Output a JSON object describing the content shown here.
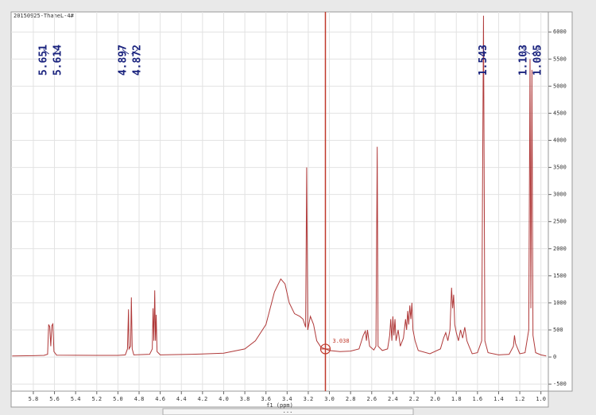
{
  "chart_data": {
    "type": "line",
    "title": "20150925-ThaneL-4#",
    "xlabel": "f1 (ppm)",
    "color": "#b03a3a",
    "grid": true,
    "xlim": [
      6.01,
      0.93
    ],
    "ylim": [
      -630,
      6370
    ],
    "xticks": [
      5.8,
      5.6,
      5.4,
      5.2,
      {
        "value": 5,
        "label": "5.0"
      },
      4.8,
      4.6,
      4.4,
      4.2,
      {
        "value": 4,
        "label": "4.0"
      },
      3.8,
      3.6,
      3.4,
      3.2,
      {
        "value": 3,
        "label": "3.0"
      },
      2.8,
      2.6,
      2.4,
      2.2,
      {
        "value": 2,
        "label": "2.0"
      },
      1.8,
      1.6,
      1.4,
      1.2,
      {
        "value": 1,
        "label": "1.0"
      }
    ],
    "yticks": [
      -500,
      0,
      500,
      1000,
      1500,
      2000,
      2500,
      3000,
      3500,
      4000,
      4500,
      5000,
      5500,
      6000
    ],
    "peak_labels": [
      5.651,
      5.614,
      4.897,
      4.872,
      1.543,
      1.103,
      1.085
    ],
    "cursor": 3.038,
    "x": [
      6.0,
      5.8,
      5.7,
      5.665,
      5.655,
      5.645,
      5.635,
      5.625,
      5.615,
      5.605,
      5.58,
      5.2,
      5.0,
      4.93,
      4.91,
      4.9,
      4.895,
      4.88,
      4.873,
      4.865,
      4.85,
      4.7,
      4.675,
      4.668,
      4.66,
      4.652,
      4.645,
      4.638,
      4.63,
      4.6,
      4.3,
      4.0,
      3.8,
      3.7,
      3.6,
      3.52,
      3.46,
      3.42,
      3.38,
      3.33,
      3.28,
      3.25,
      3.225,
      3.215,
      3.205,
      3.18,
      3.15,
      3.12,
      3.08,
      3.0,
      2.9,
      2.8,
      2.72,
      2.68,
      2.66,
      2.65,
      2.64,
      2.62,
      2.58,
      2.56,
      2.548,
      2.54,
      2.5,
      2.45,
      2.43,
      2.42,
      2.41,
      2.4,
      2.39,
      2.38,
      2.37,
      2.35,
      2.33,
      2.3,
      2.28,
      2.27,
      2.26,
      2.25,
      2.24,
      2.23,
      2.22,
      2.21,
      2.19,
      2.16,
      2.05,
      1.95,
      1.92,
      1.9,
      1.88,
      1.86,
      1.845,
      1.835,
      1.825,
      1.815,
      1.8,
      1.78,
      1.76,
      1.74,
      1.72,
      1.7,
      1.68,
      1.65,
      1.6,
      1.56,
      1.543,
      1.53,
      1.5,
      1.4,
      1.3,
      1.26,
      1.25,
      1.24,
      1.2,
      1.15,
      1.115,
      1.103,
      1.095,
      1.085,
      1.075,
      1.05,
      1.0,
      0.95
    ],
    "values": [
      20,
      25,
      30,
      50,
      600,
      560,
      200,
      580,
      610,
      100,
      35,
      30,
      30,
      40,
      150,
      880,
      150,
      200,
      1100,
      150,
      40,
      50,
      150,
      900,
      300,
      1230,
      300,
      780,
      100,
      40,
      50,
      70,
      150,
      300,
      600,
      1200,
      1440,
      1350,
      1000,
      800,
      750,
      700,
      550,
      3500,
      500,
      750,
      600,
      300,
      180,
      120,
      100,
      110,
      150,
      400,
      480,
      300,
      500,
      200,
      130,
      200,
      3880,
      200,
      120,
      150,
      400,
      700,
      300,
      750,
      400,
      700,
      300,
      500,
      200,
      350,
      700,
      500,
      850,
      600,
      950,
      700,
      1000,
      500,
      300,
      120,
      60,
      150,
      350,
      450,
      300,
      500,
      1280,
      900,
      1150,
      600,
      450,
      300,
      500,
      350,
      550,
      300,
      200,
      60,
      80,
      300,
      6300,
      300,
      80,
      40,
      50,
      200,
      400,
      250,
      60,
      80,
      500,
      5500,
      900,
      5300,
      400,
      80,
      40,
      20
    ]
  }
}
